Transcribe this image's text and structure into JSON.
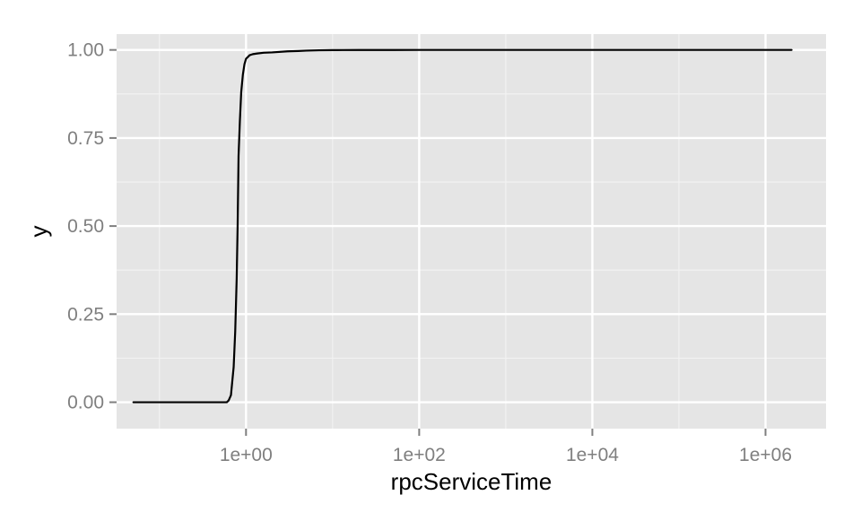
{
  "chart_data": {
    "type": "line",
    "title": "",
    "xlabel": "rpcServiceTime",
    "ylabel": "y",
    "x_scale": "log10",
    "xlim": [
      0.032,
      5000000
    ],
    "ylim": [
      -0.075,
      1.045
    ],
    "x_ticks": [
      1,
      100,
      10000,
      1000000
    ],
    "x_tick_labels": [
      "1e+00",
      "1e+02",
      "1e+04",
      "1e+06"
    ],
    "y_ticks": [
      0,
      0.25,
      0.5,
      0.75,
      1
    ],
    "y_tick_labels": [
      "0.00",
      "0.25",
      "0.50",
      "0.75",
      "1.00"
    ],
    "grid": true,
    "legend": "none",
    "series": [
      {
        "color": "#000000",
        "x": [
          0.05,
          0.3,
          0.6,
          0.63,
          0.67,
          0.72,
          0.75,
          0.78,
          0.8,
          0.82,
          0.85,
          0.88,
          0.92,
          0.96,
          1.0,
          1.05,
          1.1,
          1.2,
          1.35,
          1.6,
          2,
          3,
          4,
          5,
          7,
          10,
          20,
          50,
          100,
          1000,
          10000,
          100000,
          1000000,
          2000000
        ],
        "y": [
          0,
          0,
          0,
          0.005,
          0.02,
          0.1,
          0.2,
          0.35,
          0.5,
          0.7,
          0.8,
          0.88,
          0.93,
          0.96,
          0.975,
          0.98,
          0.985,
          0.988,
          0.99,
          0.992,
          0.993,
          0.996,
          0.997,
          0.998,
          0.999,
          0.9995,
          0.9998,
          0.9999,
          1,
          1,
          1,
          1,
          1,
          1
        ]
      }
    ]
  },
  "colors": {
    "panel_background": "#e5e5e5",
    "major_grid": "#ffffff",
    "minor_grid": "#f2f2f2",
    "tick_text": "#7f7f7f",
    "axis_title": "#000000"
  }
}
